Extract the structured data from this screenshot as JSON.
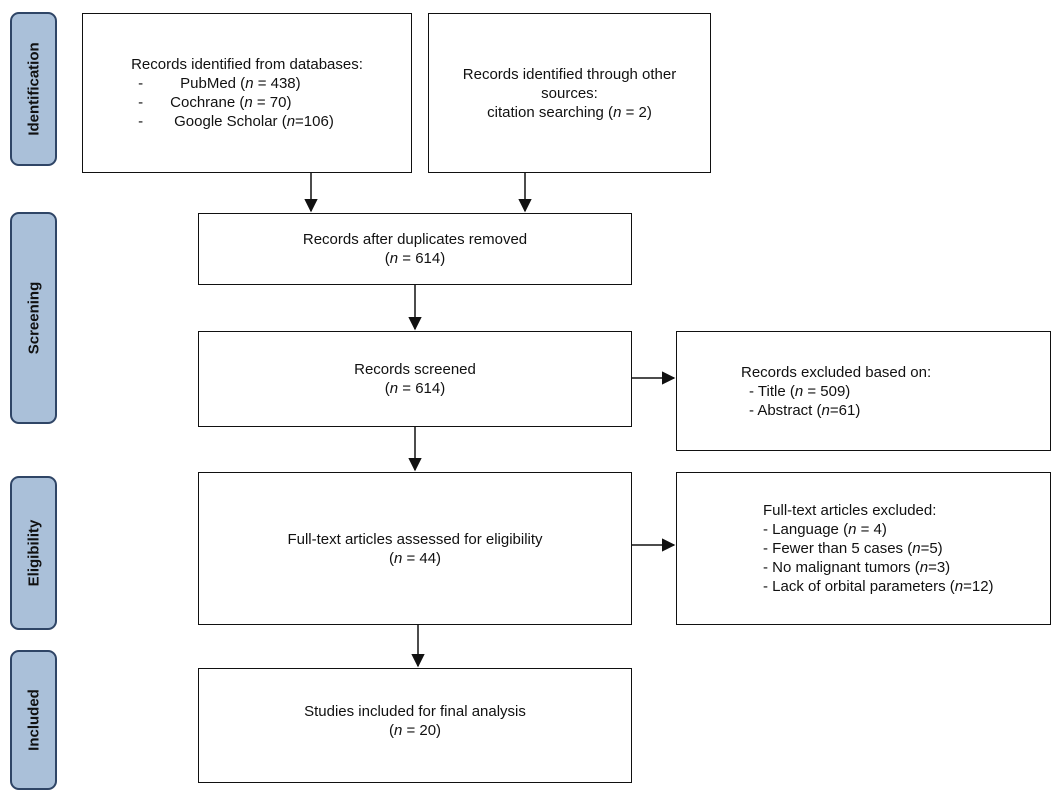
{
  "stages": {
    "identification": "Identification",
    "screening": "Screening",
    "eligibility": "Eligibility",
    "included": "Included"
  },
  "db_box": {
    "heading": "Records identified from databases:",
    "items": [
      {
        "dash": "-",
        "name": "PubMed (",
        "n": "n",
        "rest": " = 438)"
      },
      {
        "dash": "-",
        "name": "Cochrane (",
        "n": "n",
        "rest": " = 70)"
      },
      {
        "dash": "-",
        "name": "Google Scholar (",
        "n": "n",
        "rest": "=106)"
      }
    ]
  },
  "other_box": {
    "line1": "Records identified through other",
    "line2": "sources:",
    "line3_pre": "citation searching (",
    "n": "n",
    "line3_post": " = 2)"
  },
  "dup_box": {
    "line1": "Records after duplicates removed",
    "open": "(",
    "n": "n",
    "rest": " = 614)"
  },
  "screened_box": {
    "line1": "Records screened",
    "open": "(",
    "n": "n",
    "rest": " = 614)"
  },
  "excluded_screen": {
    "heading": "Records excluded based on:",
    "items": [
      {
        "pre": "- Title (",
        "n": "n",
        "post": " = 509)"
      },
      {
        "pre": "- Abstract (",
        "n": "n",
        "post": "=61)"
      }
    ]
  },
  "fulltext_box": {
    "line1": "Full-text articles assessed for eligibility",
    "open": "(",
    "n": "n",
    "rest": " = 44)"
  },
  "excluded_fulltext": {
    "heading": "Full-text articles excluded:",
    "items": [
      {
        "pre": "- Language (",
        "n": "n",
        "post": " = 4)"
      },
      {
        "pre": "- Fewer than 5 cases (",
        "n": "n",
        "post": "=5)"
      },
      {
        "pre": "- No malignant tumors (",
        "n": "n",
        "post": "=3)"
      },
      {
        "pre": "- Lack of orbital parameters (",
        "n": "n",
        "post": "=12)"
      }
    ]
  },
  "included_box": {
    "line1": "Studies included for final analysis",
    "open": "(",
    "n": "n",
    "rest": " = 20)"
  }
}
